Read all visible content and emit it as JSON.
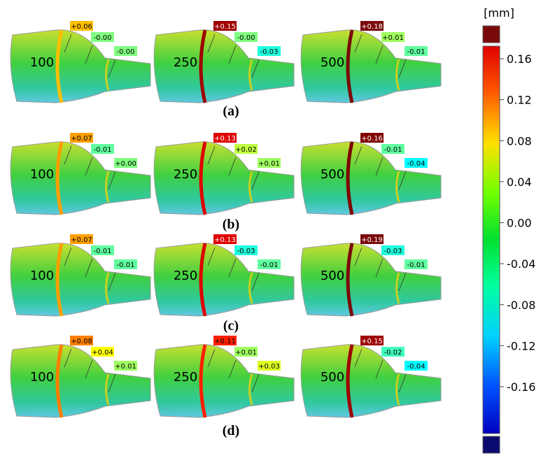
{
  "rows": [
    {
      "caption": "(a)",
      "specimens": [
        {
          "label": "100",
          "annotations": [
            "+0.06",
            "-0.00",
            "-0.00"
          ]
        },
        {
          "label": "250",
          "annotations": [
            "+0.15",
            "-0.00",
            "-0.03"
          ]
        },
        {
          "label": "500",
          "annotations": [
            "+0.18",
            "+0.01",
            "-0.01"
          ]
        }
      ]
    },
    {
      "caption": "(b)",
      "specimens": [
        {
          "label": "100",
          "annotations": [
            "+0.07",
            "-0.01",
            "+0.00"
          ]
        },
        {
          "label": "250",
          "annotations": [
            "+0.13",
            "+0.02",
            "+0.01"
          ]
        },
        {
          "label": "500",
          "annotations": [
            "+0.16",
            "-0.01",
            "-0.04"
          ]
        }
      ]
    },
    {
      "caption": "(c)",
      "specimens": [
        {
          "label": "100",
          "annotations": [
            "+0.07",
            "-0.01",
            "-0.01"
          ]
        },
        {
          "label": "250",
          "annotations": [
            "+0.13",
            "-0.03",
            "-0.01"
          ]
        },
        {
          "label": "500",
          "annotations": [
            "+0.19",
            "-0.03",
            "-0.01"
          ]
        }
      ]
    },
    {
      "caption": "(d)",
      "specimens": [
        {
          "label": "100",
          "annotations": [
            "+0.08",
            "+0.04",
            "+0.01"
          ]
        },
        {
          "label": "250",
          "annotations": [
            "+0.11",
            "+0.01",
            "+0.03"
          ]
        },
        {
          "label": "500",
          "annotations": [
            "+0.15",
            "-0.02",
            "-0.04"
          ]
        }
      ]
    }
  ],
  "colorbar": {
    "unit": "[mm]",
    "ticks": [
      0.16,
      0.12,
      0.08,
      0.04,
      {
        "value": 0,
        "label": "0.00"
      },
      -0.04,
      -0.08,
      -0.12,
      -0.16
    ]
  }
}
